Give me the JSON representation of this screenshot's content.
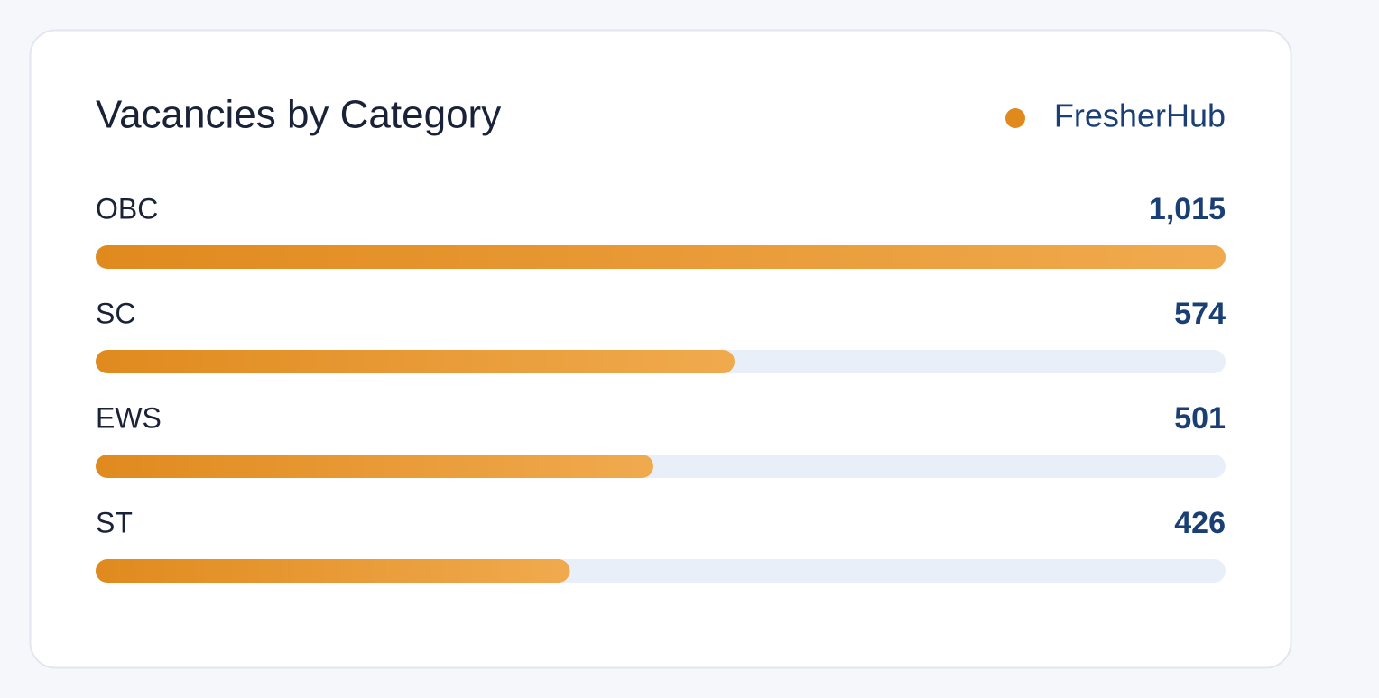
{
  "chart_data": {
    "type": "bar",
    "title": "Vacancies by Category",
    "categories": [
      "OBC",
      "SC",
      "EWS",
      "ST"
    ],
    "series": [
      {
        "name": "FresherHub",
        "color": "#e08a1e",
        "values": [
          1015,
          574,
          501,
          426
        ],
        "value_labels": [
          "1,015",
          "574",
          "501",
          "426"
        ]
      }
    ]
  }
}
